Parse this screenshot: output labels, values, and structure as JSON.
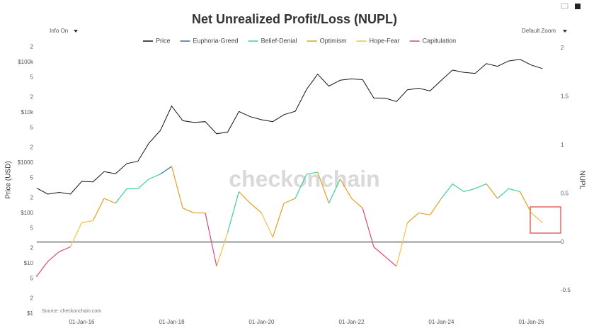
{
  "chart_data": {
    "type": "line",
    "title": "Net Unrealized Profit/Loss (NUPL)",
    "controls": {
      "left": "Info On",
      "right": "Default Zoom"
    },
    "watermark": "checkonchain",
    "source": "Source: checkonchain.com",
    "ylabel": "Price (USD)",
    "y2label": "NUPL",
    "log_y": true,
    "x": [
      "2015-01-01",
      "2015-04-01",
      "2015-07-01",
      "2015-10-01",
      "2016-01-01",
      "2016-04-01",
      "2016-07-01",
      "2016-10-01",
      "2017-01-01",
      "2017-04-01",
      "2017-07-01",
      "2017-10-01",
      "2018-01-01",
      "2018-04-01",
      "2018-07-01",
      "2018-10-01",
      "2019-01-01",
      "2019-04-01",
      "2019-07-01",
      "2019-10-01",
      "2020-01-01",
      "2020-04-01",
      "2020-07-01",
      "2020-10-01",
      "2021-01-01",
      "2021-04-01",
      "2021-07-01",
      "2021-10-01",
      "2022-01-01",
      "2022-04-01",
      "2022-07-01",
      "2022-10-01",
      "2023-01-01",
      "2023-04-01",
      "2023-07-01",
      "2023-10-01",
      "2024-01-01",
      "2024-04-01",
      "2024-07-01",
      "2024-10-01",
      "2025-01-01",
      "2025-04-01",
      "2025-07-01",
      "2025-10-01",
      "2026-01-01",
      "2026-04-01"
    ],
    "series": [
      {
        "name": "Price",
        "color": "#111111",
        "values": [
          315,
          240,
          260,
          240,
          430,
          420,
          670,
          610,
          970,
          1080,
          2500,
          4400,
          13500,
          6900,
          6400,
          6600,
          3800,
          4100,
          10500,
          8300,
          7200,
          6600,
          9100,
          10600,
          29000,
          58000,
          33500,
          44000,
          47000,
          45000,
          19500,
          19400,
          16600,
          28400,
          30500,
          27000,
          44000,
          70000,
          63000,
          60000,
          94000,
          83000,
          106000,
          114000,
          88000,
          75000
        ]
      },
      {
        "name": "Euphoria-Greed",
        "color": "#2f6fb5",
        "axis": "y2",
        "values": [
          null,
          null,
          null,
          null,
          null,
          null,
          null,
          null,
          null,
          null,
          null,
          null,
          0.78,
          null,
          null,
          null,
          null,
          null,
          null,
          null,
          null,
          null,
          null,
          null,
          null,
          null,
          null,
          null,
          null,
          null,
          null,
          null,
          null,
          null,
          null,
          null,
          null,
          null,
          null,
          null,
          null,
          null,
          null,
          null,
          null,
          null
        ]
      },
      {
        "name": "Belief-Denial",
        "color": "#3ecf9a",
        "axis": "y2",
        "values": [
          null,
          null,
          null,
          null,
          null,
          null,
          null,
          null,
          0.55,
          0.55,
          0.65,
          0.7,
          null,
          null,
          null,
          null,
          null,
          null,
          0.52,
          null,
          null,
          null,
          null,
          null,
          0.7,
          0.72,
          null,
          0.65,
          null,
          null,
          null,
          null,
          null,
          null,
          null,
          null,
          null,
          0.6,
          0.52,
          0.55,
          0.6,
          null,
          0.55,
          0.52,
          null,
          null
        ]
      },
      {
        "name": "Optimism",
        "color": "#e0a020",
        "axis": "y2",
        "values": [
          null,
          null,
          null,
          null,
          null,
          null,
          0.45,
          0.4,
          null,
          null,
          null,
          null,
          null,
          0.35,
          0.3,
          0.3,
          null,
          null,
          null,
          0.4,
          0.3,
          null,
          0.4,
          0.45,
          null,
          null,
          0.4,
          null,
          0.45,
          0.35,
          null,
          null,
          null,
          null,
          0.3,
          0.28,
          0.45,
          null,
          null,
          null,
          null,
          0.45,
          null,
          null,
          0.3,
          null
        ]
      },
      {
        "name": "Hope-Fear",
        "color": "#f2c04a",
        "axis": "y2",
        "values": [
          null,
          null,
          null,
          null,
          0.2,
          0.22,
          null,
          null,
          null,
          null,
          null,
          null,
          null,
          null,
          null,
          null,
          null,
          0.1,
          null,
          null,
          null,
          0.05,
          null,
          null,
          null,
          null,
          null,
          null,
          null,
          null,
          null,
          null,
          null,
          0.2,
          null,
          null,
          null,
          null,
          null,
          null,
          null,
          null,
          null,
          null,
          null,
          0.2
        ]
      },
      {
        "name": "Capitulation",
        "color": "#e0457b",
        "axis": "y2",
        "values": [
          -0.35,
          -0.2,
          -0.1,
          -0.05,
          null,
          null,
          null,
          null,
          null,
          null,
          null,
          null,
          null,
          null,
          null,
          null,
          -0.25,
          null,
          null,
          null,
          null,
          null,
          null,
          null,
          null,
          null,
          null,
          null,
          null,
          null,
          -0.05,
          -0.15,
          -0.25,
          null,
          null,
          null,
          null,
          null,
          null,
          null,
          null,
          null,
          null,
          null,
          null,
          null
        ]
      }
    ],
    "xlim": [
      "2015-01-01",
      "2026-07-01"
    ],
    "xticks": [
      {
        "value": "2016-01-01",
        "label": "01-Jan-16"
      },
      {
        "value": "2018-01-01",
        "label": "01-Jan-18"
      },
      {
        "value": "2020-01-01",
        "label": "01-Jan-20"
      },
      {
        "value": "2022-01-01",
        "label": "01-Jan-22"
      },
      {
        "value": "2024-01-01",
        "label": "01-Jan-24"
      },
      {
        "value": "2026-01-01",
        "label": "01-Jan-26"
      }
    ],
    "ylim": [
      1,
      210000
    ],
    "yticks": [
      {
        "value": 1,
        "label": "$1"
      },
      2,
      5,
      {
        "value": 10,
        "label": "$10"
      },
      {
        "value": 20,
        "label": "2"
      },
      {
        "value": 50,
        "label": "5"
      },
      {
        "value": 100,
        "label": "$100"
      },
      {
        "value": 200,
        "label": "2"
      },
      {
        "value": 500,
        "label": "5"
      },
      {
        "value": 1000,
        "label": "$1000"
      },
      {
        "value": 2000,
        "label": "2"
      },
      {
        "value": 5000,
        "label": "5"
      },
      {
        "value": 10000,
        "label": "$10k"
      },
      {
        "value": 20000,
        "label": "2"
      },
      {
        "value": 50000,
        "label": "5"
      },
      {
        "value": 100000,
        "label": "$100k"
      },
      {
        "value": 200000,
        "label": "2"
      }
    ],
    "y2lim": [
      -0.74,
      2.02
    ],
    "y2ticks": [
      -0.5,
      0,
      0.5,
      1,
      1.5,
      2
    ]
  }
}
